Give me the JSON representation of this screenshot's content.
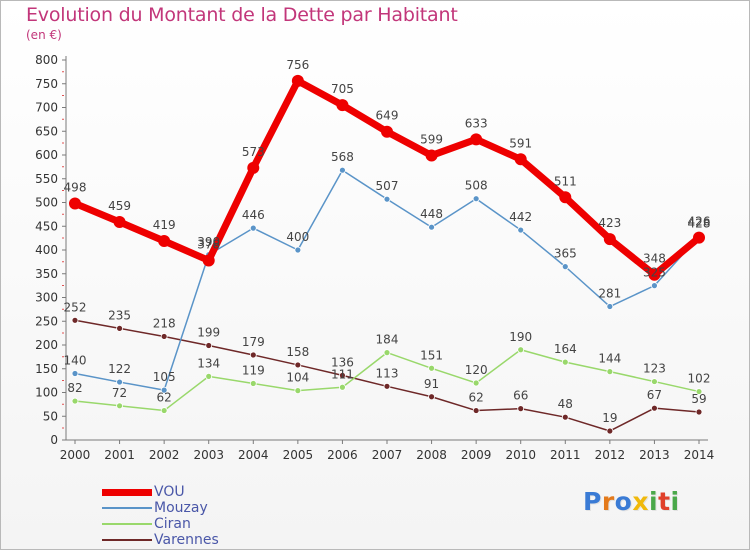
{
  "header": {
    "title": "Evolution du Montant de la Dette par Habitant",
    "subtitle": "(en €)"
  },
  "logo": {
    "text": "Proxiti"
  },
  "chart_data": {
    "type": "line",
    "title": "Evolution du Montant de la Dette par Habitant",
    "ylabel": "(en €)",
    "xlabel": "",
    "x": [
      "2000",
      "2001",
      "2002",
      "2003",
      "2004",
      "2005",
      "2006",
      "2007",
      "2008",
      "2009",
      "2010",
      "2011",
      "2012",
      "2013",
      "2014"
    ],
    "ylim": [
      0,
      800
    ],
    "yticks": [
      0,
      50,
      100,
      150,
      200,
      250,
      300,
      350,
      400,
      450,
      500,
      550,
      600,
      650,
      700,
      750,
      800
    ],
    "grid": false,
    "legend_position": "bottom-left",
    "series": [
      {
        "name": "VOU",
        "color": "#ee0000",
        "values": [
          498,
          459,
          419,
          378,
          573,
          756,
          705,
          649,
          599,
          633,
          591,
          511,
          423,
          348,
          426
        ]
      },
      {
        "name": "Mouzay",
        "color": "#5a94c8",
        "values": [
          140,
          122,
          105,
          390,
          446,
          400,
          568,
          507,
          448,
          508,
          442,
          365,
          281,
          325,
          428
        ]
      },
      {
        "name": "Ciran",
        "color": "#99d86b",
        "values": [
          82,
          72,
          62,
          134,
          119,
          104,
          111,
          184,
          151,
          120,
          190,
          164,
          144,
          123,
          102
        ]
      },
      {
        "name": "Varennes",
        "color": "#6e2828",
        "values": [
          252,
          235,
          218,
          199,
          179,
          158,
          136,
          113,
          91,
          62,
          66,
          48,
          19,
          67,
          59
        ]
      }
    ]
  }
}
